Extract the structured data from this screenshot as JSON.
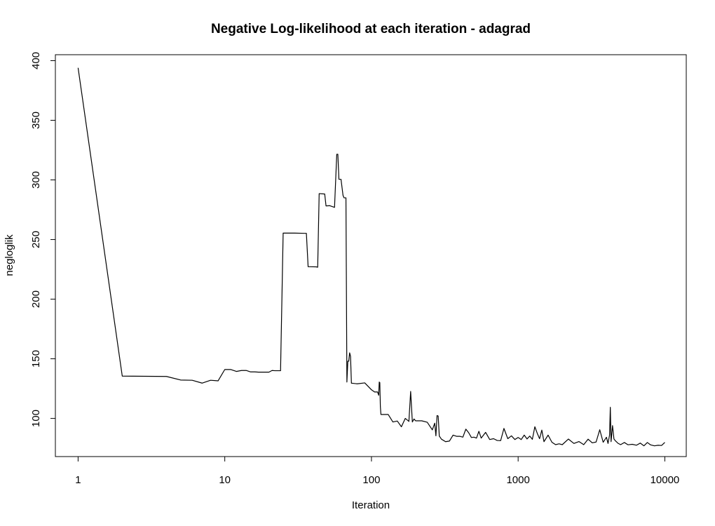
{
  "chart_data": {
    "type": "line",
    "title": "Negative Log-likelihood at each iteration - adagrad",
    "xlabel": "Iteration",
    "ylabel": "negloglik",
    "x_scale": "log",
    "xlim": [
      0.7,
      14000
    ],
    "ylim": [
      68,
      405
    ],
    "x_ticks": [
      1,
      10,
      100,
      1000,
      10000
    ],
    "x_tick_labels": [
      "1",
      "10",
      "100",
      "1000",
      "10000"
    ],
    "y_ticks": [
      100,
      150,
      200,
      250,
      300,
      350,
      400
    ],
    "y_tick_labels": [
      "100",
      "150",
      "200",
      "250",
      "300",
      "350",
      "400"
    ],
    "grid": false,
    "legend": "none",
    "series": [
      {
        "color": "#000000",
        "x": [
          1,
          2,
          4,
          5,
          6,
          7,
          8,
          9,
          10,
          11,
          12,
          13,
          14,
          15,
          16,
          17,
          20,
          21,
          22,
          24,
          25,
          26,
          30,
          35,
          36,
          37,
          38,
          42,
          43,
          44,
          48,
          49,
          52,
          56,
          58,
          59,
          60,
          61,
          62,
          64,
          65,
          66,
          67,
          68,
          69,
          70,
          71,
          72,
          73,
          74,
          80,
          90,
          100,
          105,
          110,
          112,
          113,
          114,
          115,
          116,
          120,
          130,
          140,
          150,
          160,
          170,
          180,
          185,
          190,
          195,
          200,
          220,
          240,
          260,
          270,
          275,
          280,
          285,
          290,
          300,
          320,
          340,
          360,
          380,
          400,
          420,
          440,
          460,
          480,
          500,
          520,
          540,
          560,
          600,
          640,
          680,
          720,
          760,
          800,
          850,
          900,
          950,
          1000,
          1050,
          1100,
          1150,
          1200,
          1250,
          1300,
          1350,
          1400,
          1450,
          1500,
          1600,
          1700,
          1800,
          1900,
          2000,
          2200,
          2400,
          2600,
          2800,
          3000,
          3200,
          3400,
          3600,
          3800,
          4000,
          4100,
          4200,
          4250,
          4300,
          4400,
          4500,
          4600,
          4800,
          5000,
          5300,
          5600,
          6000,
          6400,
          6800,
          7200,
          7600,
          8000,
          8500,
          9000,
          9500,
          10000
        ],
        "y": [
          394,
          135.5,
          135.2,
          132.2,
          132,
          129.6,
          132,
          131.5,
          141,
          141,
          139.4,
          140.2,
          140.2,
          139,
          139,
          138.8,
          138.8,
          140.2,
          140,
          140,
          255.4,
          255.4,
          255.4,
          255.2,
          255.2,
          227.2,
          227.2,
          227.1,
          226.8,
          288.5,
          288.2,
          278.2,
          278.4,
          277,
          321.5,
          321.5,
          300.5,
          300.5,
          300.5,
          287,
          285,
          285,
          285,
          130.5,
          148,
          148,
          155,
          152,
          129.5,
          129.5,
          129,
          129.8,
          124,
          122.2,
          122.2,
          119.4,
          130.5,
          130,
          110,
          103.3,
          103.3,
          103.3,
          97,
          97.8,
          93,
          100,
          97.5,
          122.6,
          97,
          99.5,
          98,
          98,
          96.8,
          90.4,
          96,
          85.4,
          102.4,
          102,
          85.2,
          82.6,
          80.5,
          81,
          86,
          85,
          85,
          84.3,
          91,
          88,
          84,
          84.3,
          83.5,
          89.2,
          83.5,
          88.3,
          82.3,
          83,
          81.5,
          81.4,
          91.6,
          83,
          85.4,
          82.3,
          84,
          82.3,
          86,
          82.8,
          85.2,
          82.5,
          93,
          87.5,
          83,
          90.2,
          80.5,
          86,
          80,
          78,
          78.7,
          78,
          82.7,
          79,
          80.6,
          78,
          82.6,
          79.5,
          80.2,
          90.5,
          80,
          84.2,
          79,
          86,
          109.3,
          80.5,
          94,
          82.7,
          81.3,
          79.1,
          78,
          79.8,
          77.9,
          78.3,
          77.5,
          79.3,
          77,
          79.8,
          77.8,
          77,
          77.5,
          77.3,
          79.9
        ]
      }
    ]
  }
}
